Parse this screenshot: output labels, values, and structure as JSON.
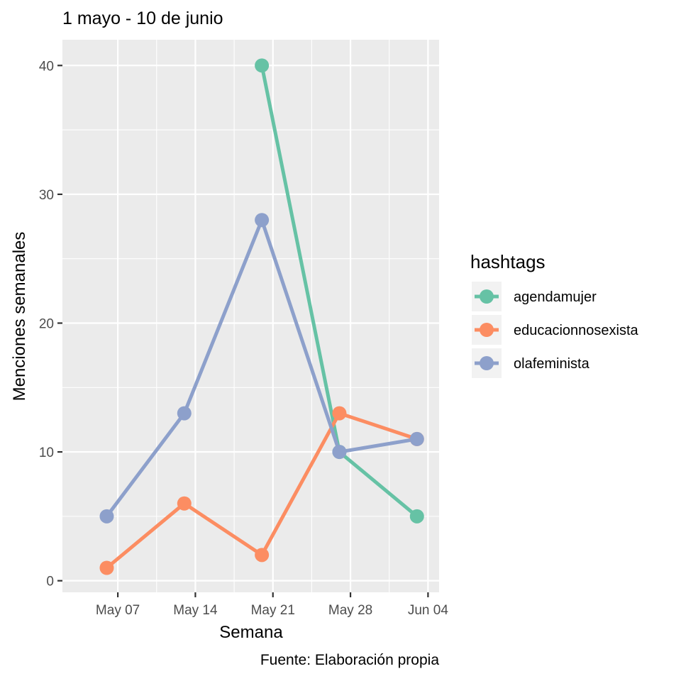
{
  "chart_data": {
    "type": "line",
    "title": "1 mayo - 10 de junio",
    "xlabel": "Semana",
    "ylabel": "Menciones semanales",
    "caption": "Fuente: Elaboración propia",
    "x_tick_labels": [
      "May 07",
      "May 14",
      "May 21",
      "May 28",
      "Jun 04"
    ],
    "x_tick_dates": [
      "2018-05-07",
      "2018-05-14",
      "2018-05-21",
      "2018-05-28",
      "2018-06-04"
    ],
    "xlim": [
      "2018-05-02",
      "2018-06-05"
    ],
    "y_ticks": [
      0,
      10,
      20,
      30,
      40
    ],
    "y_tick_labels": [
      "0",
      "10",
      "20",
      "30",
      "40"
    ],
    "ylim": [
      -0.9,
      42
    ],
    "grid": true,
    "legend": {
      "title": "hashtags",
      "position": "right"
    },
    "series": [
      {
        "name": "agendamujer",
        "color": "#66c2a5",
        "x": [
          "2018-05-20",
          "2018-05-27",
          "2018-06-03"
        ],
        "y": [
          40,
          10,
          5
        ]
      },
      {
        "name": "educacionnosexista",
        "color": "#fc8d62",
        "x": [
          "2018-05-06",
          "2018-05-13",
          "2018-05-20",
          "2018-05-27",
          "2018-06-03"
        ],
        "y": [
          1,
          6,
          2,
          13,
          11
        ]
      },
      {
        "name": "olafeminista",
        "color": "#8da0cb",
        "x": [
          "2018-05-06",
          "2018-05-13",
          "2018-05-20",
          "2018-05-27",
          "2018-06-03"
        ],
        "y": [
          5,
          13,
          28,
          10,
          11
        ]
      }
    ]
  }
}
